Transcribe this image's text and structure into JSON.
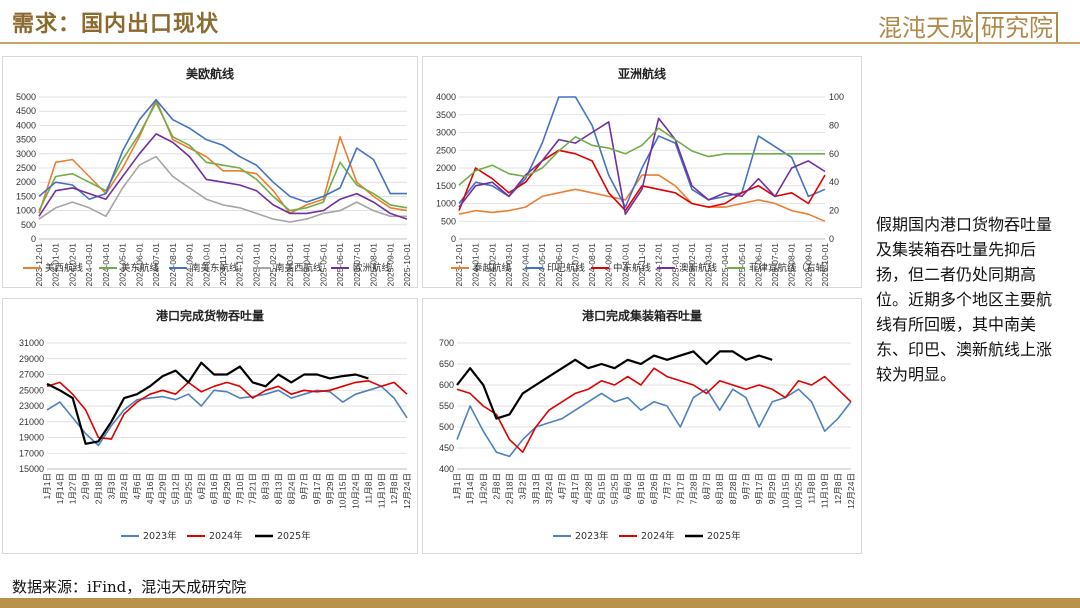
{
  "header": {
    "title": "需求：国内出口现状",
    "logo_text": "混沌天成",
    "logo_box": "研究院"
  },
  "note": "假期国内港口货物吞吐量及集装箱吞吐量先抑后扬，但二者仍处同期高位。近期多个地区主要航线有所回暖，其中南美东、印巴、澳新航线上涨较为明显。",
  "source": "数据来源：iFind，混沌天成研究院",
  "colors": {
    "accent": "#b8924a"
  },
  "chart_data": [
    {
      "type": "line",
      "title": "美欧航线",
      "x": [
        "2023-12-01",
        "2024-01-01",
        "2024-02-01",
        "2024-03-01",
        "2024-04-01",
        "2024-05-01",
        "2024-06-01",
        "2024-07-01",
        "2024-08-01",
        "2024-09-01",
        "2024-10-01",
        "2024-11-01",
        "2024-12-01",
        "2025-01-01",
        "2025-02-01",
        "2025-03-01",
        "2025-04-01",
        "2025-05-01",
        "2025-06-01",
        "2025-07-01",
        "2025-08-01",
        "2025-09-01",
        "2025-10-01"
      ],
      "ylim": [
        0,
        5000
      ],
      "yticks": [
        0,
        500,
        1000,
        1500,
        2000,
        2500,
        3000,
        3500,
        4000,
        4500,
        5000
      ],
      "series": [
        {
          "name": "美西航线",
          "color": "#ed7d31",
          "values": [
            900,
            2700,
            2800,
            2200,
            1600,
            2500,
            3600,
            4900,
            3500,
            3200,
            2900,
            2400,
            2400,
            2300,
            1700,
            900,
            1200,
            1400,
            3600,
            2000,
            1500,
            1100,
            1000
          ]
        },
        {
          "name": "美东航线",
          "color": "#70ad47",
          "values": [
            1000,
            2200,
            2300,
            2000,
            1700,
            2800,
            3700,
            4800,
            3600,
            3300,
            2700,
            2600,
            2500,
            2100,
            1500,
            1000,
            1100,
            1300,
            2700,
            1900,
            1600,
            1200,
            1100
          ]
        },
        {
          "name": "南美东航线",
          "color": "#4472c4",
          "values": [
            1500,
            2000,
            1900,
            1400,
            1600,
            3100,
            4200,
            4900,
            4200,
            3900,
            3500,
            3300,
            2900,
            2600,
            2000,
            1500,
            1300,
            1500,
            1800,
            3200,
            2800,
            1600,
            1600
          ]
        },
        {
          "name": "南美西航线",
          "color": "#a5a5a5",
          "values": [
            700,
            1100,
            1300,
            1100,
            800,
            1800,
            2600,
            2900,
            2200,
            1800,
            1400,
            1200,
            1100,
            900,
            700,
            600,
            700,
            900,
            1000,
            1300,
            1000,
            800,
            800
          ]
        },
        {
          "name": "欧洲航线",
          "color": "#7030a0",
          "values": [
            800,
            1700,
            1800,
            1600,
            1400,
            2200,
            3000,
            3700,
            3400,
            2900,
            2100,
            2000,
            1900,
            1700,
            1200,
            900,
            900,
            1000,
            1400,
            1600,
            1300,
            900,
            700
          ]
        }
      ]
    },
    {
      "type": "line",
      "title": "亚洲航线",
      "x": [
        "2023-12-01",
        "2024-01-01",
        "2024-02-01",
        "2024-03-01",
        "2024-04-01",
        "2024-05-01",
        "2024-06-01",
        "2024-07-01",
        "2024-08-01",
        "2024-09-01",
        "2024-10-01",
        "2024-11-01",
        "2024-12-01",
        "2025-01-01",
        "2025-02-01",
        "2025-03-01",
        "2025-04-01",
        "2025-05-01",
        "2025-06-01",
        "2025-07-01",
        "2025-08-01",
        "2025-09-01",
        "2025-10-01"
      ],
      "ylim": [
        0,
        4000
      ],
      "yticks": [
        0,
        500,
        1000,
        1500,
        2000,
        2500,
        3000,
        3500,
        4000
      ],
      "y2lim": [
        0,
        100
      ],
      "y2ticks": [
        0,
        20,
        40,
        60,
        80,
        100
      ],
      "series": [
        {
          "name": "泰越航线",
          "color": "#ed7d31",
          "axis": "left",
          "values": [
            700,
            800,
            750,
            800,
            900,
            1200,
            1300,
            1400,
            1300,
            1200,
            1100,
            1800,
            1800,
            1500,
            1000,
            900,
            900,
            1000,
            1100,
            1000,
            800,
            700,
            500
          ]
        },
        {
          "name": "印巴航线",
          "color": "#4472c4",
          "axis": "left",
          "values": [
            1000,
            1600,
            1500,
            1200,
            1700,
            2700,
            4000,
            4000,
            3200,
            1800,
            900,
            2000,
            2900,
            2700,
            1400,
            1100,
            1200,
            1300,
            2900,
            2600,
            2300,
            1200,
            1400
          ]
        },
        {
          "name": "中东航线",
          "color": "#e00000",
          "axis": "left",
          "values": [
            800,
            2000,
            1700,
            1300,
            1600,
            2200,
            2500,
            2400,
            2200,
            1300,
            800,
            1500,
            1400,
            1300,
            1000,
            900,
            1000,
            1300,
            1500,
            1200,
            1300,
            1000,
            1800
          ]
        },
        {
          "name": "澳新航线",
          "color": "#7030a0",
          "axis": "left",
          "values": [
            900,
            1500,
            1600,
            1200,
            1800,
            2200,
            2800,
            2700,
            3000,
            3300,
            700,
            1400,
            3400,
            2800,
            1500,
            1100,
            1300,
            1200,
            1700,
            1200,
            2000,
            2200,
            1900
          ]
        },
        {
          "name": "菲律宾航线（右轴）",
          "color": "#70ad47",
          "axis": "right",
          "values": [
            38,
            48,
            52,
            46,
            44,
            50,
            62,
            72,
            66,
            64,
            60,
            66,
            78,
            70,
            62,
            58,
            60,
            60,
            60,
            60,
            60,
            60,
            60
          ]
        }
      ]
    },
    {
      "type": "line",
      "title": "港口完成货物吞吐量",
      "x": [
        "1月1日",
        "1月14日",
        "1月27日",
        "2月9日",
        "2月18日",
        "3月3日",
        "3月24日",
        "4月6日",
        "4月16日",
        "4月29日",
        "5月12日",
        "5月25日",
        "6月2日",
        "6月16日",
        "6月29日",
        "7月10日",
        "7月21日",
        "8月3日",
        "8月13日",
        "8月24日",
        "9月7日",
        "9月17日",
        "9月29日",
        "10月15日",
        "10月24日",
        "11月8日",
        "11月19日",
        "12月8日",
        "12月24日"
      ],
      "ylim": [
        15000,
        31000
      ],
      "yticks": [
        15000,
        17000,
        19000,
        21000,
        23000,
        25000,
        27000,
        29000,
        31000
      ],
      "series": [
        {
          "name": "2023年",
          "color": "#4e81bd",
          "values": [
            22500,
            23500,
            21500,
            19500,
            18000,
            20500,
            22500,
            23800,
            24000,
            24200,
            23800,
            24500,
            23000,
            25000,
            24800,
            24000,
            24200,
            24500,
            25000,
            24000,
            24500,
            25000,
            24800,
            23500,
            24500,
            25000,
            25500,
            24000,
            21500
          ]
        },
        {
          "name": "2024年",
          "color": "#e00000",
          "values": [
            25500,
            26000,
            24500,
            22500,
            19000,
            18800,
            22000,
            23500,
            24500,
            25000,
            24500,
            26000,
            24800,
            25500,
            26000,
            25500,
            24000,
            25000,
            25500,
            24500,
            25000,
            24800,
            25000,
            25500,
            26000,
            26200,
            25500,
            26000,
            24500
          ]
        },
        {
          "name": "2025年",
          "color": "#000000",
          "values": [
            25800,
            25000,
            24000,
            18200,
            18500,
            21000,
            24000,
            24500,
            25500,
            26800,
            27500,
            26000,
            28500,
            27000,
            27000,
            28000,
            26000,
            25500,
            27000,
            26000,
            27000,
            27000,
            26500,
            26800,
            27000,
            26500,
            null,
            null,
            null
          ]
        }
      ]
    },
    {
      "type": "line",
      "title": "港口完成集装箱吞吐量",
      "x": [
        "1月1日",
        "1月14日",
        "1月26日",
        "2月8日",
        "2月18日",
        "3月2日",
        "3月13日",
        "3月24日",
        "4月7日",
        "4月17日",
        "4月28日",
        "5月15日",
        "5月25日",
        "6月6日",
        "6月16日",
        "6月26日",
        "7月7日",
        "7月17日",
        "7月28日",
        "8月7日",
        "8月18日",
        "8月28日",
        "9月7日",
        "9月17日",
        "9月29日",
        "10月15日",
        "10月25日",
        "11月8日",
        "11月19日",
        "12月8日",
        "12月24日"
      ],
      "ylim": [
        400,
        700
      ],
      "yticks": [
        400,
        450,
        500,
        550,
        600,
        650,
        700
      ],
      "series": [
        {
          "name": "2023年",
          "color": "#4e81bd",
          "values": [
            470,
            550,
            490,
            440,
            430,
            470,
            500,
            510,
            520,
            540,
            560,
            580,
            560,
            570,
            540,
            560,
            550,
            500,
            570,
            590,
            540,
            590,
            570,
            500,
            560,
            570,
            590,
            560,
            490,
            520,
            560
          ]
        },
        {
          "name": "2024年",
          "color": "#e00000",
          "values": [
            590,
            580,
            550,
            530,
            470,
            440,
            500,
            540,
            560,
            580,
            590,
            610,
            600,
            620,
            600,
            640,
            620,
            610,
            600,
            580,
            610,
            600,
            590,
            600,
            590,
            570,
            610,
            600,
            620,
            590,
            560
          ]
        },
        {
          "name": "2025年",
          "color": "#000000",
          "values": [
            600,
            640,
            600,
            520,
            530,
            580,
            600,
            620,
            640,
            660,
            640,
            650,
            640,
            660,
            650,
            670,
            660,
            670,
            680,
            650,
            680,
            680,
            660,
            670,
            660,
            null,
            null,
            null,
            null,
            null,
            null
          ]
        }
      ]
    }
  ]
}
